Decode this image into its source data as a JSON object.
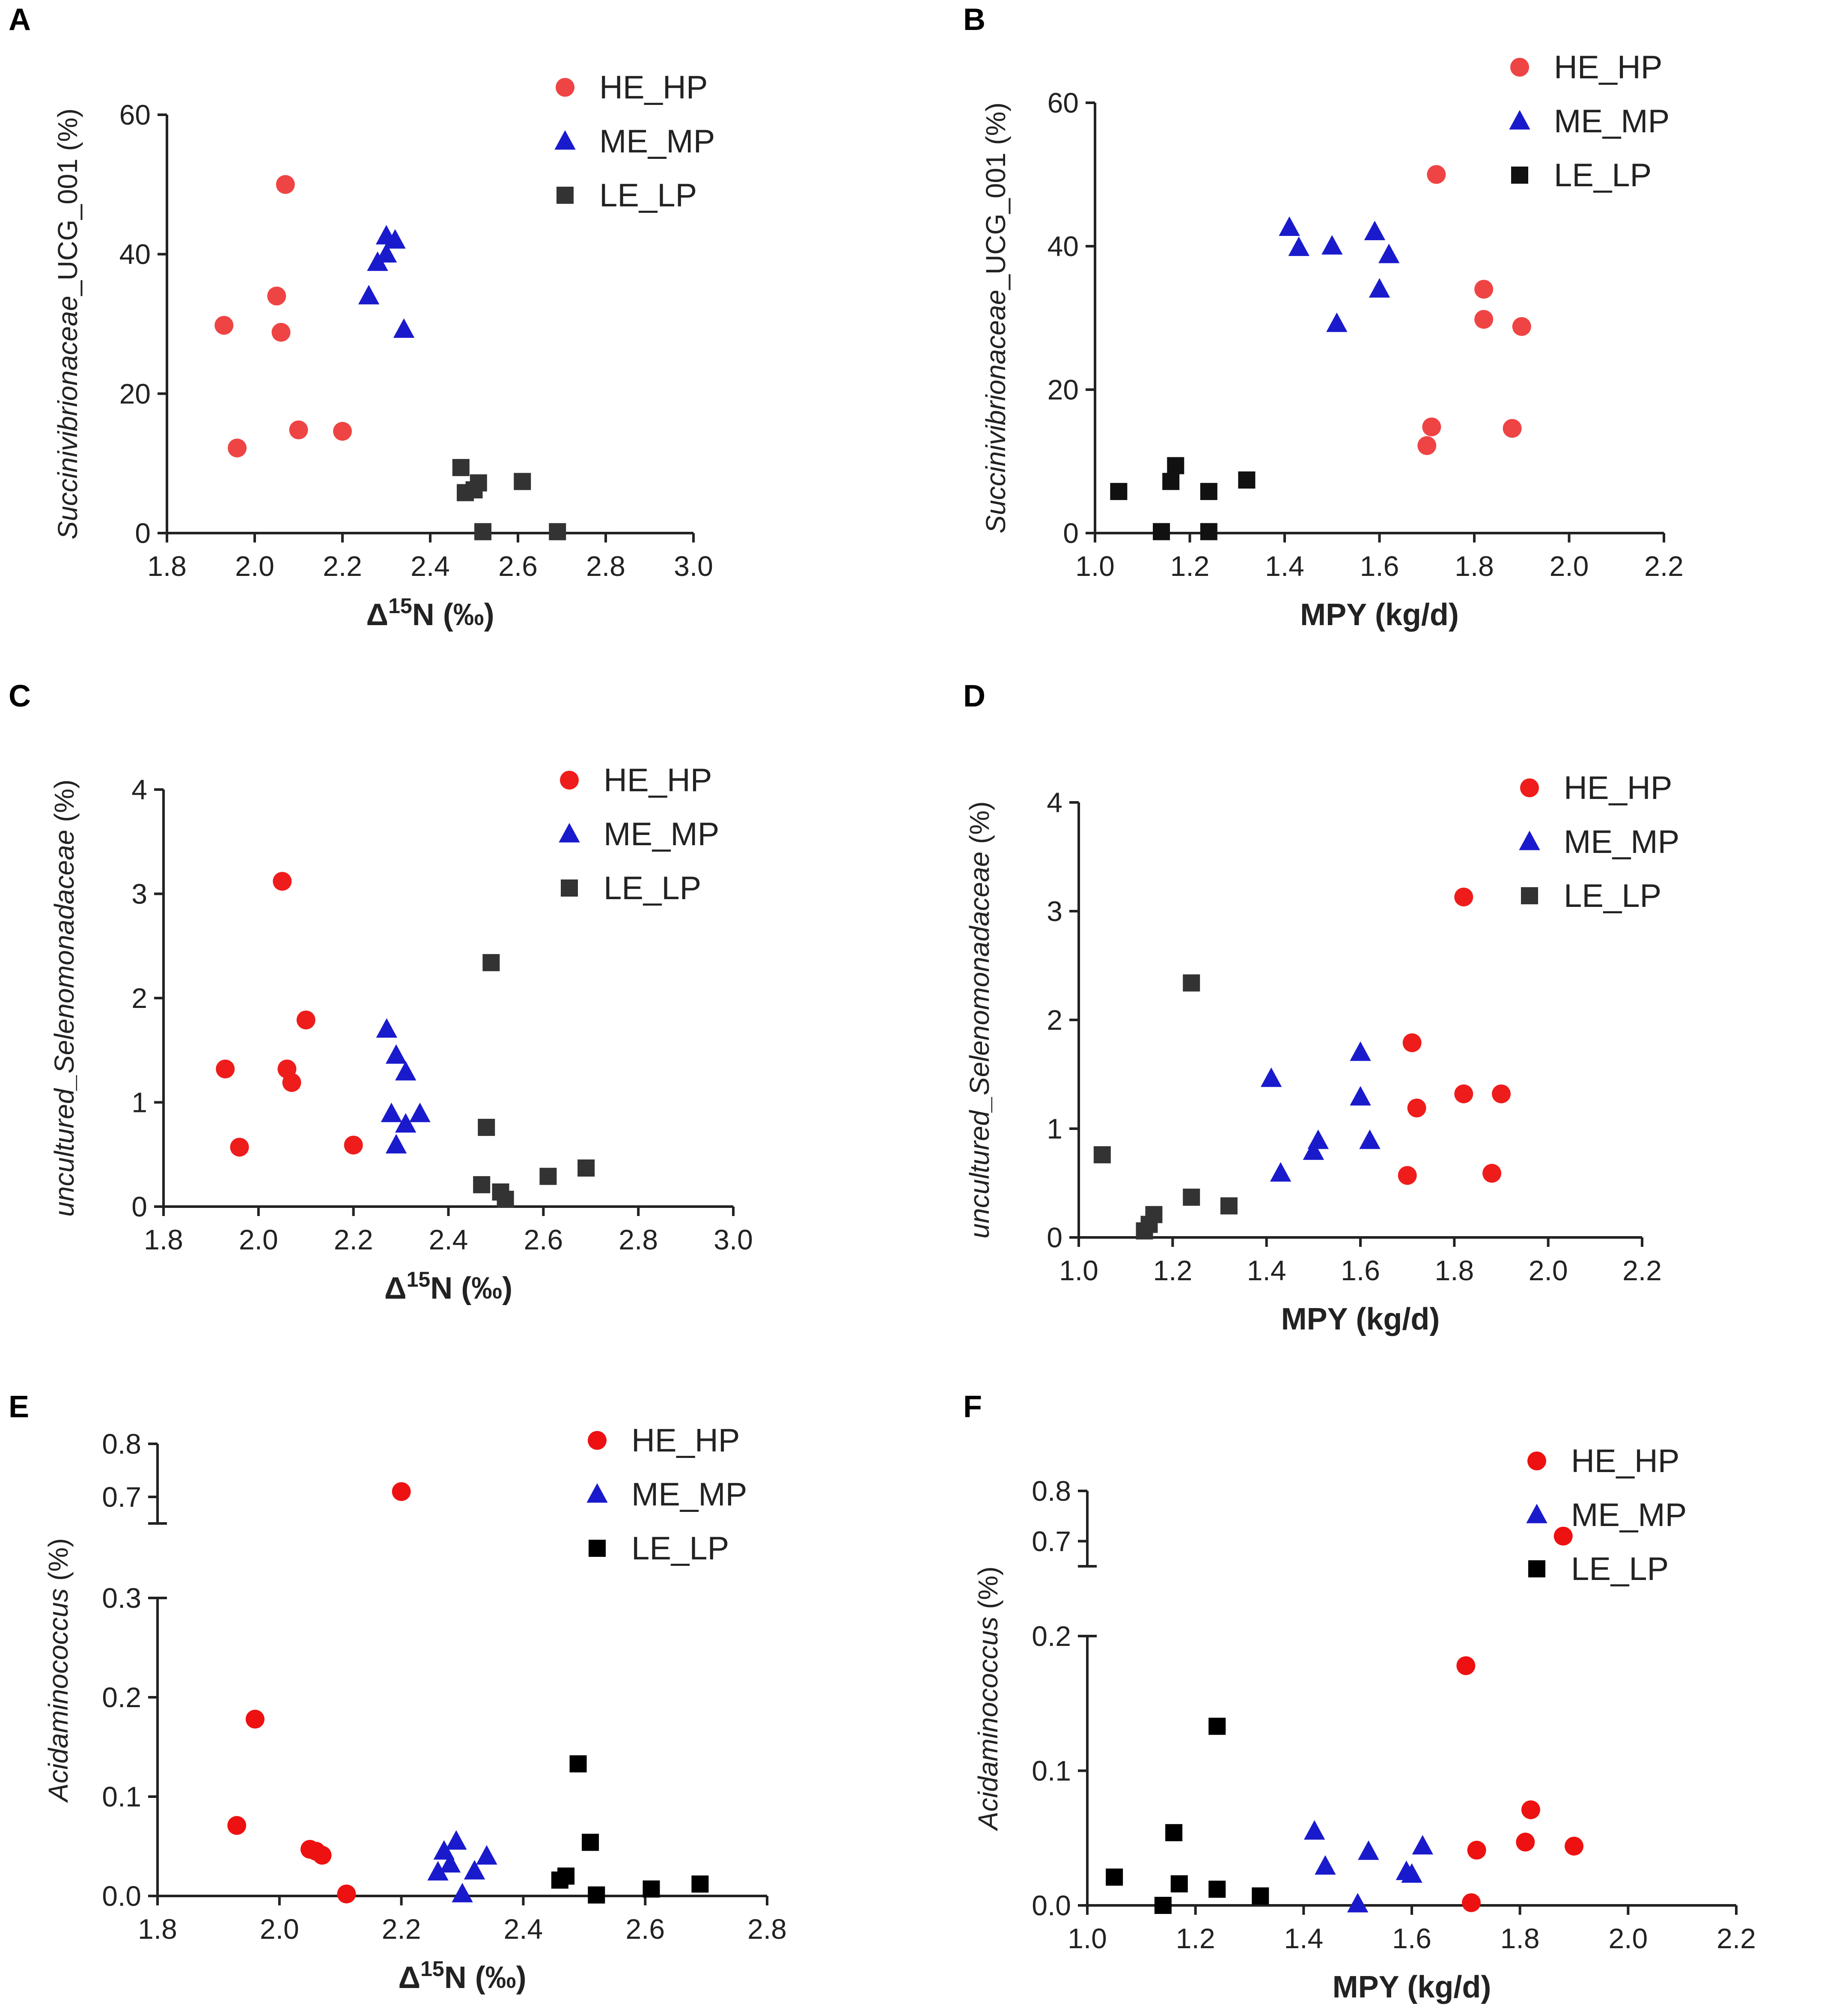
{
  "colors": {
    "HE_HP": [
      "#ef4444",
      "#ef4444",
      "#ef1c1c",
      "#ef1c1c",
      "#ee1111",
      "#ee1111"
    ],
    "ME_MP": "#1a1acd",
    "LE_LP": [
      "#333333",
      "#111111",
      "#333333",
      "#333333",
      "#000000",
      "#000000"
    ],
    "axis": "#222222"
  },
  "chart_data": [
    {
      "panel": "A",
      "type": "scatter",
      "x_name": "Δ",
      "x_sup": "15",
      "x_unit": "N (‰)",
      "y_italic": "Succinivibrionaceae",
      "y_plain": "_UCG_001 (%)",
      "xlim": [
        1.8,
        3.0
      ],
      "xticks": [
        "1.8",
        "2.0",
        "2.2",
        "2.4",
        "2.6",
        "2.8",
        "3.0"
      ],
      "ylim": [
        0,
        60
      ],
      "yticks": [
        "0",
        "20",
        "40",
        "60"
      ],
      "legend": [
        "HE_HP",
        "ME_MP",
        "LE_LP"
      ],
      "series": [
        {
          "name": "HE_HP",
          "points": [
            [
              2.07,
              50
            ],
            [
              2.05,
              34
            ],
            [
              1.93,
              29.8
            ],
            [
              2.06,
              28.8
            ],
            [
              2.1,
              14.8
            ],
            [
              2.2,
              14.6
            ],
            [
              1.96,
              12.2
            ]
          ]
        },
        {
          "name": "ME_MP",
          "points": [
            [
              2.3,
              42.6
            ],
            [
              2.32,
              42
            ],
            [
              2.3,
              40
            ],
            [
              2.28,
              38.8
            ],
            [
              2.26,
              34
            ],
            [
              2.34,
              29.2
            ]
          ]
        },
        {
          "name": "LE_LP",
          "points": [
            [
              2.47,
              9.4
            ],
            [
              2.48,
              5.8
            ],
            [
              2.5,
              6.2
            ],
            [
              2.51,
              7.2
            ],
            [
              2.61,
              7.4
            ],
            [
              2.52,
              0.2
            ],
            [
              2.69,
              0.2
            ]
          ]
        }
      ]
    },
    {
      "panel": "B",
      "type": "scatter",
      "x_name": "MPY (kg/d)",
      "y_italic": "Succinivibrionaceae",
      "y_plain": "_UCG_001 (%)",
      "xlim": [
        1.0,
        2.2
      ],
      "xticks": [
        "1.0",
        "1.2",
        "1.4",
        "1.6",
        "1.8",
        "2.0",
        "2.2"
      ],
      "ylim": [
        0,
        60
      ],
      "yticks": [
        "0",
        "20",
        "40",
        "60"
      ],
      "legend": [
        "HE_HP",
        "ME_MP",
        "LE_LP"
      ],
      "series": [
        {
          "name": "HE_HP",
          "points": [
            [
              1.72,
              50
            ],
            [
              1.82,
              34
            ],
            [
              1.82,
              29.8
            ],
            [
              1.9,
              28.8
            ],
            [
              1.71,
              14.8
            ],
            [
              1.88,
              14.6
            ],
            [
              1.7,
              12.2
            ]
          ]
        },
        {
          "name": "ME_MP",
          "points": [
            [
              1.41,
              42.6
            ],
            [
              1.59,
              42
            ],
            [
              1.5,
              40
            ],
            [
              1.43,
              39.8
            ],
            [
              1.62,
              38.8
            ],
            [
              1.6,
              34
            ],
            [
              1.51,
              29.2
            ]
          ]
        },
        {
          "name": "LE_LP",
          "points": [
            [
              1.17,
              9.4
            ],
            [
              1.16,
              7.2
            ],
            [
              1.32,
              7.4
            ],
            [
              1.05,
              5.8
            ],
            [
              1.24,
              5.8
            ],
            [
              1.14,
              0.2
            ],
            [
              1.24,
              0.2
            ]
          ]
        }
      ]
    },
    {
      "panel": "C",
      "type": "scatter",
      "x_name": "Δ",
      "x_sup": "15",
      "x_unit": "N (‰)",
      "y_italic": "uncultured_Selenomonadaceae",
      "y_plain": " (%)",
      "xlim": [
        1.8,
        3.0
      ],
      "xticks": [
        "1.8",
        "2.0",
        "2.2",
        "2.4",
        "2.6",
        "2.8",
        "3.0"
      ],
      "ylim": [
        0,
        4
      ],
      "yticks": [
        "0",
        "1",
        "2",
        "3",
        "4"
      ],
      "legend": [
        "HE_HP",
        "ME_MP",
        "LE_LP"
      ],
      "series": [
        {
          "name": "HE_HP",
          "points": [
            [
              2.05,
              3.12
            ],
            [
              2.1,
              1.79
            ],
            [
              1.93,
              1.32
            ],
            [
              2.06,
              1.32
            ],
            [
              2.07,
              1.19
            ],
            [
              1.96,
              0.57
            ],
            [
              2.2,
              0.59
            ]
          ]
        },
        {
          "name": "ME_MP",
          "points": [
            [
              2.27,
              1.7
            ],
            [
              2.29,
              1.45
            ],
            [
              2.31,
              1.29
            ],
            [
              2.28,
              0.89
            ],
            [
              2.34,
              0.89
            ],
            [
              2.31,
              0.79
            ],
            [
              2.29,
              0.59
            ]
          ]
        },
        {
          "name": "LE_LP",
          "points": [
            [
              2.49,
              2.34
            ],
            [
              2.48,
              0.76
            ],
            [
              2.47,
              0.21
            ],
            [
              2.51,
              0.14
            ],
            [
              2.52,
              0.07
            ],
            [
              2.61,
              0.29
            ],
            [
              2.69,
              0.37
            ]
          ]
        }
      ]
    },
    {
      "panel": "D",
      "type": "scatter",
      "x_name": "MPY (kg/d)",
      "y_italic": "uncultured_Selenomonadaceae",
      "y_plain": " (%)",
      "xlim": [
        1.0,
        2.2
      ],
      "xticks": [
        "1.0",
        "1.2",
        "1.4",
        "1.6",
        "1.8",
        "2.0",
        "2.2"
      ],
      "ylim": [
        0,
        4
      ],
      "yticks": [
        "0",
        "1",
        "2",
        "3",
        "4"
      ],
      "legend": [
        "HE_HP",
        "ME_MP",
        "LE_LP"
      ],
      "series": [
        {
          "name": "HE_HP",
          "points": [
            [
              1.82,
              3.13
            ],
            [
              1.71,
              1.79
            ],
            [
              1.72,
              1.19
            ],
            [
              1.82,
              1.32
            ],
            [
              1.9,
              1.32
            ],
            [
              1.7,
              0.57
            ],
            [
              1.88,
              0.59
            ]
          ]
        },
        {
          "name": "ME_MP",
          "points": [
            [
              1.41,
              1.46
            ],
            [
              1.6,
              1.7
            ],
            [
              1.6,
              1.29
            ],
            [
              1.62,
              0.89
            ],
            [
              1.51,
              0.89
            ],
            [
              1.5,
              0.79
            ],
            [
              1.43,
              0.59
            ]
          ]
        },
        {
          "name": "LE_LP",
          "points": [
            [
              1.24,
              2.34
            ],
            [
              1.05,
              0.76
            ],
            [
              1.24,
              0.37
            ],
            [
              1.32,
              0.29
            ],
            [
              1.16,
              0.21
            ],
            [
              1.15,
              0.12
            ],
            [
              1.14,
              0.06
            ]
          ]
        }
      ]
    },
    {
      "panel": "E",
      "type": "scatter",
      "x_name": "Δ",
      "x_sup": "15",
      "x_unit": "N (‰)",
      "y_italic": "Acidaminococcus",
      "y_plain": " (%)",
      "xlim": [
        1.8,
        2.8
      ],
      "xticks": [
        "1.8",
        "2.0",
        "2.2",
        "2.4",
        "2.6",
        "2.8"
      ],
      "ylim": [
        0,
        0.3
      ],
      "ylim_upper": [
        0.65,
        0.8
      ],
      "yticks": [
        "0.0",
        "0.1",
        "0.2",
        "0.3"
      ],
      "yticks_upper": [
        "0.7",
        "0.8"
      ],
      "axis_break": true,
      "legend": [
        "HE_HP",
        "ME_MP",
        "LE_LP"
      ],
      "series": [
        {
          "name": "HE_HP",
          "points": [
            [
              2.2,
              0.71
            ],
            [
              1.96,
              0.178
            ],
            [
              1.93,
              0.071
            ],
            [
              2.05,
              0.047
            ],
            [
              2.06,
              0.045
            ],
            [
              2.07,
              0.041
            ],
            [
              2.11,
              0.002
            ]
          ]
        },
        {
          "name": "ME_MP",
          "points": [
            [
              2.29,
              0.055
            ],
            [
              2.27,
              0.045
            ],
            [
              2.34,
              0.04
            ],
            [
              2.28,
              0.032
            ],
            [
              2.26,
              0.024
            ],
            [
              2.32,
              0.025
            ],
            [
              2.3,
              0.002
            ]
          ]
        },
        {
          "name": "LE_LP",
          "points": [
            [
              2.49,
              0.133
            ],
            [
              2.51,
              0.054
            ],
            [
              2.47,
              0.02
            ],
            [
              2.46,
              0.016
            ],
            [
              2.61,
              0.007
            ],
            [
              2.69,
              0.012
            ],
            [
              2.52,
              0.001
            ]
          ]
        }
      ]
    },
    {
      "panel": "F",
      "type": "scatter",
      "x_name": "MPY (kg/d)",
      "y_italic": "Acidaminococcus",
      "y_plain": " (%)",
      "xlim": [
        1.0,
        2.2
      ],
      "xticks": [
        "1.0",
        "1.2",
        "1.4",
        "1.6",
        "1.8",
        "2.0",
        "2.2"
      ],
      "ylim": [
        0,
        0.2
      ],
      "ylim_upper": [
        0.65,
        0.8
      ],
      "yticks": [
        "0.0",
        "0.1",
        "0.2"
      ],
      "yticks_upper": [
        "0.7",
        "0.8"
      ],
      "axis_break": true,
      "legend": [
        "HE_HP",
        "ME_MP",
        "LE_LP"
      ],
      "series": [
        {
          "name": "HE_HP",
          "points": [
            [
              1.88,
              0.71
            ],
            [
              1.7,
              0.178
            ],
            [
              1.82,
              0.071
            ],
            [
              1.81,
              0.047
            ],
            [
              1.9,
              0.044
            ],
            [
              1.72,
              0.041
            ],
            [
              1.71,
              0.002
            ]
          ]
        },
        {
          "name": "ME_MP",
          "points": [
            [
              1.42,
              0.055
            ],
            [
              1.62,
              0.044
            ],
            [
              1.52,
              0.04
            ],
            [
              1.44,
              0.029
            ],
            [
              1.59,
              0.025
            ],
            [
              1.6,
              0.023
            ],
            [
              1.5,
              0.001
            ]
          ]
        },
        {
          "name": "LE_LP",
          "points": [
            [
              1.24,
              0.133
            ],
            [
              1.16,
              0.054
            ],
            [
              1.05,
              0.021
            ],
            [
              1.17,
              0.016
            ],
            [
              1.24,
              0.012
            ],
            [
              1.32,
              0.007
            ],
            [
              1.14,
              0.0
            ]
          ]
        }
      ]
    }
  ]
}
